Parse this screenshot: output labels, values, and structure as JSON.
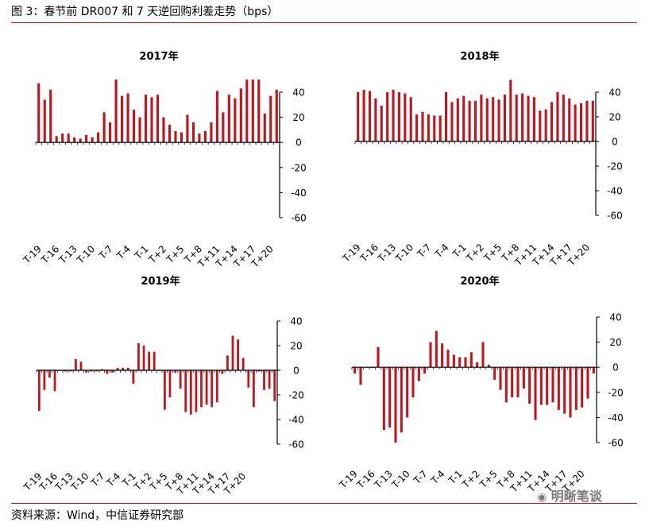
{
  "figure": {
    "title": "图 3：春节前 DR007 和 7 天逆回购利差走势（bps）",
    "source": "资料来源：Wind，中信证券研究部",
    "watermark": "明晰笔谈"
  },
  "colors": {
    "bar": "#c0151c",
    "rule": "#c0151c",
    "axis": "#000000"
  },
  "chart_data": [
    {
      "type": "bar",
      "title": "2017年",
      "ylim": [
        -60,
        40
      ],
      "yticks": [
        "40",
        "20",
        "0",
        "-20",
        "-40",
        "-60"
      ],
      "ytick_values": [
        40,
        20,
        0,
        -20,
        -40,
        -60
      ],
      "tick_labels": [
        "T-19",
        "T-16",
        "T-13",
        "T-10",
        "T-7",
        "T-4",
        "T-1",
        "T+2",
        "T+5",
        "T+8",
        "T+11",
        "T+14",
        "T+17",
        "T+20"
      ],
      "values": [
        47,
        34,
        42,
        5,
        7,
        7,
        4,
        3,
        6,
        4,
        8,
        24,
        16,
        50,
        37,
        39,
        26,
        20,
        38,
        36,
        38,
        20,
        14,
        9,
        8,
        22,
        16,
        7,
        9,
        16,
        41,
        24,
        38,
        35,
        43,
        50,
        50,
        50,
        23,
        37,
        42
      ]
    },
    {
      "type": "bar",
      "title": "2018年",
      "ylim": [
        -60,
        40
      ],
      "yticks": [
        "40",
        "20",
        "0",
        "-20",
        "-40",
        "-60"
      ],
      "ytick_values": [
        40,
        20,
        0,
        -20,
        -40,
        -60
      ],
      "tick_labels": [
        "T-19",
        "T-16",
        "T-13",
        "T-10",
        "T-7",
        "T-4",
        "T-1",
        "T+2",
        "T+5",
        "T+8",
        "T+11",
        "T+14",
        "T+17",
        "T+20"
      ],
      "values": [
        40,
        42,
        41,
        35,
        29,
        40,
        42,
        40,
        39,
        36,
        22,
        24,
        22,
        21,
        21,
        40,
        32,
        35,
        37,
        33,
        33,
        38,
        35,
        36,
        34,
        38,
        50,
        38,
        39,
        37,
        36,
        25,
        26,
        32,
        40,
        38,
        35,
        30,
        31,
        33,
        33
      ]
    },
    {
      "type": "bar",
      "title": "2019年",
      "ylim": [
        -60,
        40
      ],
      "yticks": [
        "40",
        "20",
        "0",
        "-20",
        "-40",
        "-60"
      ],
      "ytick_values": [
        40,
        20,
        0,
        -20,
        -40,
        -60
      ],
      "tick_labels": [
        "T-19",
        "T-16",
        "T-13",
        "T-10",
        "T-7",
        "T-4",
        "T-1",
        "T+2",
        "T+5",
        "T+8",
        "T+11",
        "T+14",
        "T+17",
        "T+20"
      ],
      "values": [
        -33,
        -16,
        -6,
        -17,
        0,
        -1,
        -1,
        9,
        7,
        -2,
        -1,
        -1,
        1,
        -3,
        -2,
        2,
        2,
        2,
        -11,
        22,
        20,
        15,
        15,
        0,
        -32,
        -22,
        -2,
        -15,
        -34,
        -36,
        -34,
        -30,
        -28,
        -30,
        -26,
        -3,
        12,
        28,
        25,
        10,
        -14,
        -30,
        -1,
        -16,
        -15,
        -25
      ]
    },
    {
      "type": "bar",
      "title": "2020年",
      "ylim": [
        -60,
        40
      ],
      "yticks": [
        "40",
        "20",
        "0",
        "-20",
        "-40",
        "-60"
      ],
      "ytick_values": [
        40,
        20,
        0,
        -20,
        -40,
        -60
      ],
      "tick_labels": [
        "T-19",
        "T-16",
        "T-13",
        "T-10",
        "T-7",
        "T-4",
        "T-1",
        "T+2",
        "T+5",
        "T+8",
        "T+11",
        "T+14",
        "T+17",
        "T+20"
      ],
      "values": [
        -5,
        -14,
        0,
        0,
        16,
        -50,
        -48,
        -60,
        -52,
        -40,
        -24,
        -11,
        -5,
        20,
        29,
        19,
        14,
        10,
        8,
        8,
        12,
        4,
        20,
        2,
        -10,
        -18,
        -28,
        -24,
        -24,
        -17,
        -29,
        -42,
        -30,
        -30,
        -28,
        -34,
        -37,
        -40,
        -34,
        -32,
        -25,
        -5
      ]
    }
  ]
}
